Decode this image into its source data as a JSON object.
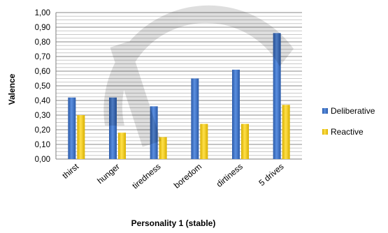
{
  "chart_data": {
    "type": "bar",
    "xlabel": "Personality 1 (stable)",
    "ylabel": "Valence",
    "ylim": [
      0,
      1.0
    ],
    "yticks": [
      "0,00",
      "0,10",
      "0,20",
      "0,30",
      "0,40",
      "0,50",
      "0,60",
      "0,70",
      "0,80",
      "0,90",
      "1,00"
    ],
    "grid": true,
    "legend_position": "right",
    "categories": [
      "thirst",
      "hunger",
      "tiredness",
      "boredom",
      "dirtiness",
      "5 drives"
    ],
    "series": [
      {
        "name": "Deliberative",
        "color": "#3a6fc4",
        "values": [
          0.42,
          0.42,
          0.36,
          0.55,
          0.61,
          0.86
        ]
      },
      {
        "name": "Reactive",
        "color": "#f2cc0c",
        "values": [
          0.3,
          0.18,
          0.15,
          0.24,
          0.24,
          0.37
        ]
      }
    ]
  }
}
